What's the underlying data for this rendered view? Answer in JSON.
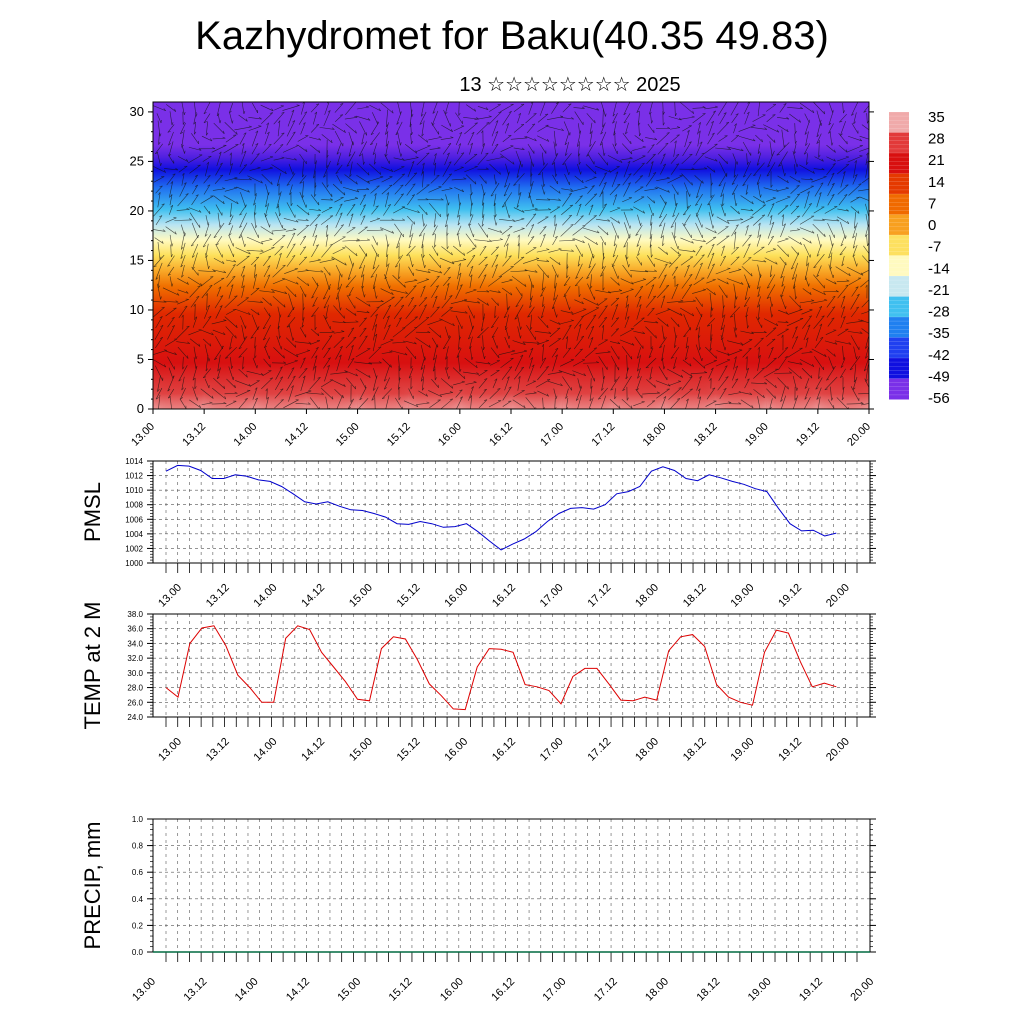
{
  "title": "Kazhydromet for Baku(40.35 49.83)",
  "subtitle": "13 ☆☆☆☆☆☆☆☆ 2025",
  "time_labels": [
    "13.00",
    "13.12",
    "14.00",
    "14.12",
    "15.00",
    "15.12",
    "16.00",
    "16.12",
    "17.00",
    "17.12",
    "18.00",
    "18.12",
    "19.00",
    "19.12",
    "20.00"
  ],
  "chart_data": [
    {
      "type": "heatmap",
      "y_ticks": [
        0,
        5,
        10,
        15,
        20,
        25,
        30
      ],
      "ylim": [
        0,
        31
      ],
      "colorbar": {
        "labels": [
          "35",
          "28",
          "21",
          "14",
          "7",
          "0",
          "-7",
          "-14",
          "-21",
          "-28",
          "-35",
          "-42",
          "-49",
          "-56"
        ],
        "colors": [
          "#f0aaaa",
          "#e23a3a",
          "#d81010",
          "#e53a00",
          "#f06a00",
          "#f8a020",
          "#fde060",
          "#fffac0",
          "#c8e8f0",
          "#40c0f0",
          "#2080f0",
          "#2040f0",
          "#1010e0",
          "#7a30e8"
        ]
      },
      "overlay": "wind vectors"
    },
    {
      "type": "line",
      "ylabel": "PMSL",
      "ylim": [
        1000,
        1014
      ],
      "y_ticks": [
        "1000",
        "1002",
        "1004",
        "1006",
        "1008",
        "1010",
        "1012",
        "1014"
      ],
      "color": "#0000cc",
      "values": [
        1012.6,
        1013.4,
        1013.3,
        1012.7,
        1011.6,
        1011.6,
        1012.1,
        1011.9,
        1011.4,
        1011.2,
        1010.5,
        1009.5,
        1008.4,
        1008.1,
        1008.4,
        1007.8,
        1007.3,
        1007.2,
        1006.8,
        1006.3,
        1005.4,
        1005.3,
        1005.7,
        1005.4,
        1004.9,
        1005.0,
        1005.4,
        1004.3,
        1003.0,
        1001.8,
        1002.6,
        1003.3,
        1004.3,
        1005.7,
        1006.8,
        1007.5,
        1007.6,
        1007.4,
        1008.0,
        1009.5,
        1009.8,
        1010.5,
        1012.6,
        1013.2,
        1012.7,
        1011.6,
        1011.3,
        1012.1,
        1011.7,
        1011.2,
        1010.8,
        1010.2,
        1009.8,
        1007.5,
        1005.4,
        1004.4,
        1004.5,
        1003.7,
        1004.1
      ]
    },
    {
      "type": "line",
      "ylabel": "TEMP at 2 M",
      "ylim": [
        24,
        38
      ],
      "y_ticks": [
        "24.0",
        "26.0",
        "28.0",
        "30.0",
        "32.0",
        "34.0",
        "36.0",
        "38.0"
      ],
      "color": "#dd0000",
      "values": [
        28.0,
        26.7,
        34.0,
        36.1,
        36.4,
        33.7,
        29.7,
        28.0,
        26.0,
        26.0,
        34.7,
        36.4,
        35.9,
        32.8,
        30.8,
        28.8,
        26.4,
        26.2,
        33.3,
        34.9,
        34.6,
        31.8,
        28.5,
        26.9,
        25.1,
        25.0,
        30.8,
        33.3,
        33.2,
        32.8,
        28.4,
        28.1,
        27.6,
        25.8,
        29.5,
        30.6,
        30.6,
        28.5,
        26.3,
        26.2,
        26.7,
        26.3,
        33.0,
        34.9,
        35.2,
        33.6,
        28.4,
        26.7,
        26.0,
        25.6,
        32.8,
        35.8,
        35.4,
        31.5,
        28.1,
        28.6,
        28.1
      ]
    },
    {
      "type": "bar",
      "ylabel": "PRECIP, mm",
      "ylim": [
        0,
        1
      ],
      "y_ticks": [
        "0.0",
        "0.2",
        "0.4",
        "0.6",
        "0.8",
        "1.0"
      ],
      "values": []
    }
  ]
}
